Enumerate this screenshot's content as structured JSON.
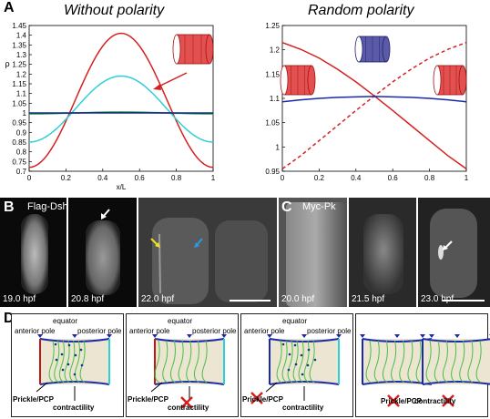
{
  "figure": {
    "panel_letters": {
      "a": "A",
      "b": "B",
      "c": "C",
      "d": "D"
    },
    "panel_a_left_title": "Without polarity",
    "panel_a_right_title": "Random polarity",
    "panel_b_label": "Flag-Dsh",
    "panel_c_label": "Myc-Pk",
    "panel_b_times": [
      "19.0 hpf",
      "20.8 hpf",
      "22.0 hpf"
    ],
    "panel_c_times": [
      "20.0 hpf",
      "21.5 hpf",
      "23.0 hpf"
    ],
    "panel_d_labels": {
      "equator": "equator",
      "anterior_pole": "anterior pole",
      "posterior_pole": "posterior pole",
      "prickle_pcp": "Prickle/PCP",
      "contractility": "contractility"
    },
    "colors": {
      "red": "#d42020",
      "cyan": "#2ed0d8",
      "blue": "#1a2aa8",
      "green": "#33b533",
      "dgreen": "#0a5a0a"
    }
  },
  "chart_data": [
    {
      "type": "line",
      "title": "Without polarity",
      "xlabel": "x/L",
      "ylabel": "ρ",
      "xlim": [
        0,
        1
      ],
      "ylim": [
        0.7,
        1.45
      ],
      "xticks": [
        "0",
        "0.2",
        "0.4",
        "0.6",
        "0.8",
        "1"
      ],
      "yticks": [
        "0.7",
        "0.75",
        "0.8",
        "0.85",
        "0.9",
        "0.95",
        "1",
        "1.05",
        "1.1",
        "1.15",
        "1.2",
        "1.25",
        "1.3",
        "1.35",
        "1.4",
        "1.45"
      ],
      "series": [
        {
          "color": "#d42020",
          "dash": false,
          "peak": 1.41,
          "trough": 0.72
        },
        {
          "color": "#2ed0d8",
          "dash": false,
          "peak": 1.19,
          "trough": 0.85
        },
        {
          "color": "#33b533",
          "dash": false,
          "peak": 1.005,
          "trough": 0.995
        },
        {
          "color": "#0a5a0a",
          "dash": false,
          "peak": 1.002,
          "trough": 0.998
        },
        {
          "color": "#1a2aa8",
          "dash": false,
          "peak": 1.0,
          "trough": 1.0
        }
      ]
    },
    {
      "type": "line",
      "title": "Random polarity",
      "xlabel": "",
      "ylabel": "",
      "xlim": [
        0,
        1
      ],
      "ylim": [
        0.95,
        1.25
      ],
      "xticks": [
        "0",
        "0.2",
        "0.4",
        "0.6",
        "0.8",
        "1"
      ],
      "yticks": [
        "0.95",
        "1",
        "1.05",
        "1.1",
        "1.15",
        "1.2",
        "1.25"
      ],
      "series": [
        {
          "color": "#d42020",
          "dash": false,
          "x": [
            0,
            0.1,
            0.2,
            0.3,
            0.4,
            0.5,
            0.6,
            0.7,
            0.8,
            0.9,
            1
          ],
          "y": [
            1.215,
            1.201,
            1.183,
            1.16,
            1.134,
            1.105,
            1.075,
            1.044,
            1.013,
            0.982,
            0.955
          ]
        },
        {
          "color": "#d42020",
          "dash": true,
          "x": [
            0,
            0.1,
            0.2,
            0.3,
            0.4,
            0.5,
            0.6,
            0.7,
            0.8,
            0.9,
            1
          ],
          "y": [
            0.955,
            0.982,
            1.013,
            1.044,
            1.075,
            1.105,
            1.134,
            1.16,
            1.183,
            1.201,
            1.215
          ]
        },
        {
          "color": "#1a2aa8",
          "dash": false,
          "x": [
            0,
            0.1,
            0.2,
            0.3,
            0.4,
            0.5,
            0.6,
            0.7,
            0.8,
            0.9,
            1
          ],
          "y": [
            1.093,
            1.097,
            1.1,
            1.102,
            1.103,
            1.104,
            1.103,
            1.102,
            1.1,
            1.097,
            1.093
          ]
        }
      ]
    }
  ]
}
